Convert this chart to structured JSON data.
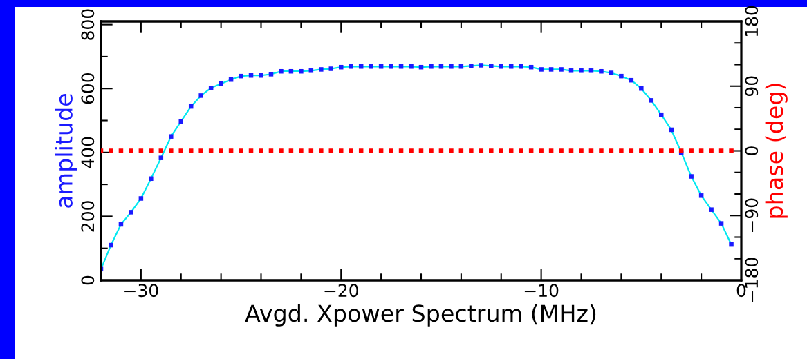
{
  "chart_data": {
    "type": "line",
    "xlabel": "Avgd. Xpower Spectrum (MHz)",
    "ylabel": "amplitude",
    "y2label": "phase (deg)",
    "x": [
      -32,
      -31.5,
      -31,
      -30.5,
      -30,
      -29.5,
      -29,
      -28.5,
      -28,
      -27.5,
      -27,
      -26.5,
      -26,
      -25.5,
      -25,
      -24.5,
      -24,
      -23.5,
      -23,
      -22.5,
      -22,
      -21.5,
      -21,
      -20.5,
      -20,
      -19.5,
      -19,
      -18.5,
      -18,
      -17.5,
      -17,
      -16.5,
      -16,
      -15.5,
      -15,
      -14.5,
      -14,
      -13.5,
      -13,
      -12.5,
      -12,
      -11.5,
      -11,
      -10.5,
      -10,
      -9.5,
      -9,
      -8.5,
      -8,
      -7.5,
      -7,
      -6.5,
      -6,
      -5.5,
      -5,
      -4.5,
      -4,
      -3.5,
      -3,
      -2.5,
      -2,
      -1.5,
      -1,
      -0.5
    ],
    "series": [
      {
        "color": "#00e8f0",
        "marker": "none",
        "line_style": "solid",
        "values": [
          35,
          110,
          175,
          213,
          256,
          318,
          383,
          450,
          497,
          544,
          578,
          602,
          615,
          628,
          639,
          641,
          641,
          645,
          654,
          654,
          654,
          656,
          660,
          662,
          667,
          669,
          669,
          669,
          669,
          669,
          669,
          669,
          667,
          669,
          669,
          669,
          669,
          671,
          673,
          671,
          669,
          669,
          669,
          667,
          660,
          660,
          660,
          656,
          656,
          656,
          654,
          649,
          639,
          626,
          600,
          563,
          518,
          471,
          400,
          325,
          265,
          221,
          178,
          112
        ]
      },
      {
        "type": "scatter",
        "color": "#1a1aff",
        "marker": "square",
        "values": [
          35,
          110,
          175,
          213,
          256,
          318,
          383,
          450,
          497,
          544,
          578,
          602,
          615,
          628,
          639,
          641,
          641,
          645,
          654,
          654,
          654,
          656,
          660,
          662,
          667,
          669,
          669,
          669,
          669,
          669,
          669,
          669,
          667,
          669,
          669,
          669,
          669,
          671,
          673,
          671,
          669,
          669,
          669,
          667,
          660,
          660,
          660,
          656,
          656,
          656,
          654,
          649,
          639,
          626,
          600,
          563,
          518,
          471,
          400,
          325,
          265,
          221,
          178,
          112
        ]
      },
      {
        "type": "scatter",
        "color": "#ff0000",
        "marker": "square",
        "axis": "y2",
        "values": [
          0,
          0,
          0,
          0,
          0,
          0,
          0,
          0,
          0,
          0,
          0,
          0,
          0,
          0,
          0,
          0,
          0,
          0,
          0,
          0,
          0,
          0,
          0,
          0,
          0,
          0,
          0,
          0,
          0,
          0,
          0,
          0,
          0,
          0,
          0,
          0,
          0,
          0,
          0,
          0,
          0,
          0,
          0,
          0,
          0,
          0,
          0,
          0,
          0,
          0,
          0,
          0,
          0,
          0,
          0,
          0,
          0,
          0,
          0,
          0,
          0,
          0,
          0,
          0
        ]
      }
    ],
    "xlim": [
      -32,
      0
    ],
    "xticks": [
      {
        "value": -30,
        "label": "−30"
      },
      {
        "value": -20,
        "label": "−20"
      },
      {
        "value": -10,
        "label": "−10"
      },
      0,
      {
        "value": -28,
        "label": null
      },
      {
        "value": -26,
        "label": null
      },
      {
        "value": -24,
        "label": null
      },
      {
        "value": -22,
        "label": null
      },
      {
        "value": -18,
        "label": null
      },
      {
        "value": -16,
        "label": null
      },
      {
        "value": -14,
        "label": null
      },
      {
        "value": -12,
        "label": null
      },
      {
        "value": -8,
        "label": null
      },
      {
        "value": -6,
        "label": null
      },
      {
        "value": -4,
        "label": null
      },
      {
        "value": -2,
        "label": null
      }
    ],
    "ylim": [
      0,
      810
    ],
    "yticks": [
      0,
      200,
      400,
      600,
      800,
      {
        "value": 100,
        "label": null
      },
      {
        "value": 300,
        "label": null
      },
      {
        "value": 500,
        "label": null
      },
      {
        "value": 700,
        "label": null
      }
    ],
    "y2lim": [
      -180,
      180
    ],
    "y2ticks": [
      {
        "value": -180,
        "label": "−180"
      },
      {
        "value": -90,
        "label": "−90"
      },
      0,
      90,
      180,
      {
        "value": -150,
        "label": null
      },
      {
        "value": -120,
        "label": null
      },
      {
        "value": -60,
        "label": null
      },
      {
        "value": -30,
        "label": null
      },
      {
        "value": 30,
        "label": null
      },
      {
        "value": 60,
        "label": null
      },
      {
        "value": 120,
        "label": null
      },
      {
        "value": 150,
        "label": null
      }
    ],
    "grid": false
  }
}
